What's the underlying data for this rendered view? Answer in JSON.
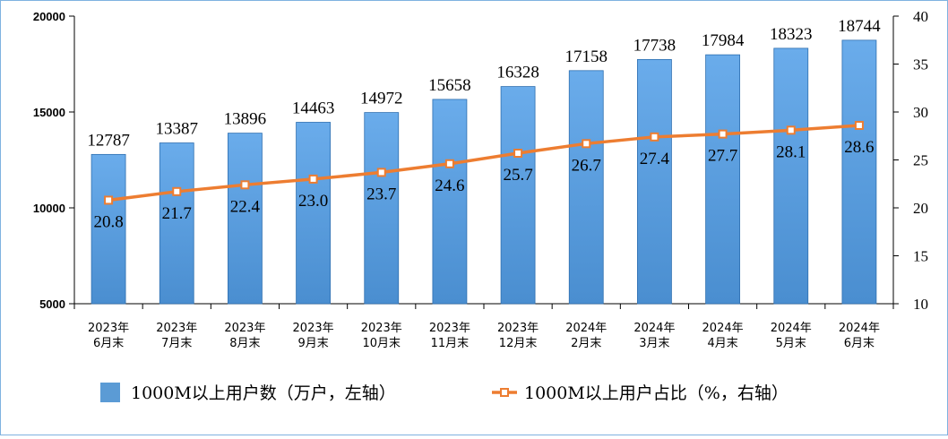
{
  "chart_data": {
    "type": "bar",
    "categories": [
      [
        "2023年",
        "6月末"
      ],
      [
        "2023年",
        "7月末"
      ],
      [
        "2023年",
        "8月末"
      ],
      [
        "2023年",
        "9月末"
      ],
      [
        "2023年",
        "10月末"
      ],
      [
        "2023年",
        "11月末"
      ],
      [
        "2023年",
        "12月末"
      ],
      [
        "2024年",
        "2月末"
      ],
      [
        "2024年",
        "3月末"
      ],
      [
        "2024年",
        "4月末"
      ],
      [
        "2024年",
        "5月末"
      ],
      [
        "2024年",
        "6月末"
      ]
    ],
    "series": [
      {
        "name": "1000M以上用户数（万户，左轴）",
        "type": "bar",
        "axis": "left",
        "color": "#5b9bd5",
        "values": [
          12787,
          13387,
          13896,
          14463,
          14972,
          15658,
          16328,
          17158,
          17738,
          17984,
          18323,
          18744
        ]
      },
      {
        "name": "1000M以上用户占比（%，右轴）",
        "type": "line",
        "axis": "right",
        "color": "#ed7d31",
        "values": [
          20.8,
          21.7,
          22.4,
          23.0,
          23.7,
          24.6,
          25.7,
          26.7,
          27.4,
          27.7,
          28.1,
          28.6
        ],
        "labels": [
          "20.8",
          "21.7",
          "22.4",
          "23.0",
          "23.7",
          "24.6",
          "25.7",
          "26.7",
          "27.4",
          "27.7",
          "28.1",
          "28.6"
        ]
      }
    ],
    "y_left": {
      "min": 5000,
      "max": 20000,
      "ticks": [
        5000,
        10000,
        15000,
        20000
      ]
    },
    "y_right": {
      "min": 10,
      "max": 40,
      "ticks": [
        10,
        15,
        20,
        25,
        30,
        35,
        40
      ]
    },
    "grid": false,
    "legend_position": "bottom"
  }
}
